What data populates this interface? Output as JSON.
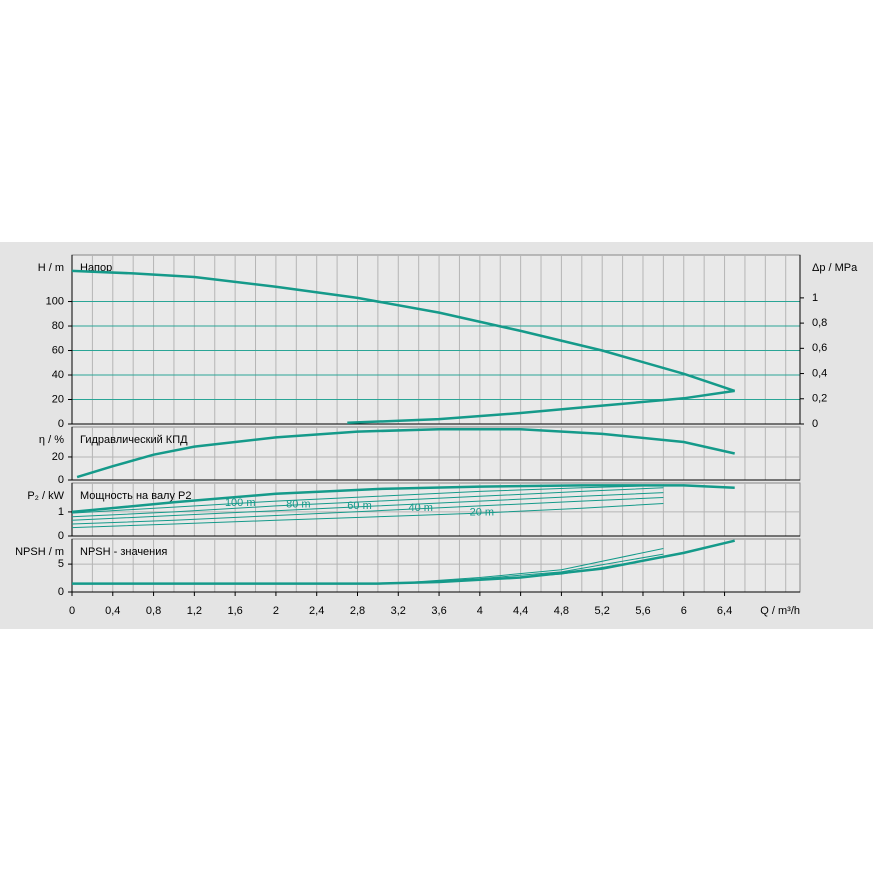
{
  "chart_data": [
    {
      "type": "line",
      "title": "Напор",
      "ylabel": "H / m",
      "y2label": "Δp / MPa",
      "xlim": [
        0,
        7.14
      ],
      "ylim": [
        0,
        138
      ],
      "yticks": [
        0,
        20,
        40,
        60,
        80,
        100
      ],
      "y2lim": [
        0,
        1.34
      ],
      "y2ticks": [
        0,
        {
          "value": 0.2,
          "label": "0,2"
        },
        {
          "value": 0.4,
          "label": "0,4"
        },
        {
          "value": 0.6,
          "label": "0,6"
        },
        {
          "value": 0.8,
          "label": "0,8"
        },
        1
      ],
      "grid_color": "#2aa596",
      "series": [
        {
          "color": "#159a8a",
          "width": 2.5,
          "x": [
            0,
            0.6,
            1.2,
            2,
            2.8,
            3.6,
            4.4,
            5.2,
            6,
            6.5
          ],
          "values": [
            125,
            123,
            120,
            112,
            103,
            91,
            76,
            60,
            41,
            27
          ]
        },
        {
          "color": "#159a8a",
          "width": 2.5,
          "x": [
            2.7,
            3.6,
            4.4,
            5.2,
            6,
            6.5
          ],
          "values": [
            1,
            4,
            9,
            15,
            21,
            27
          ]
        }
      ]
    },
    {
      "type": "line",
      "title": "Гидравлический КПД",
      "ylabel": "η / %",
      "xlim": [
        0,
        7.14
      ],
      "ylim": [
        0,
        46
      ],
      "yticks": [
        0,
        20
      ],
      "grid_color": "#b5b5b5",
      "series": [
        {
          "color": "#159a8a",
          "width": 2.5,
          "x": [
            0.05,
            0.4,
            0.8,
            1.2,
            2,
            2.8,
            3.6,
            4.4,
            5.2,
            6,
            6.5
          ],
          "values": [
            2.5,
            12,
            22,
            29,
            37,
            42,
            44,
            44,
            40,
            33,
            23
          ]
        }
      ]
    },
    {
      "type": "line",
      "title": "Мощность на валу P2",
      "ylabel": "P₂ / kW",
      "xlim": [
        0,
        7.14
      ],
      "ylim": [
        0,
        2.2
      ],
      "yticks": [
        0,
        1
      ],
      "grid_color": "#b5b5b5",
      "series": [
        {
          "color": "#159a8a",
          "width": 2.5,
          "x": [
            0,
            1,
            2,
            3,
            4,
            5,
            6,
            6.5
          ],
          "values": [
            1.0,
            1.4,
            1.75,
            1.95,
            2.05,
            2.1,
            2.1,
            2.0
          ]
        },
        {
          "name": "100 m",
          "color": "#159a8a",
          "width": 1,
          "x": [
            0,
            1,
            2,
            3,
            4,
            5,
            5.8
          ],
          "values": [
            0.95,
            1.2,
            1.45,
            1.65,
            1.85,
            2.0,
            2.1
          ]
        },
        {
          "name": "80 m",
          "color": "#159a8a",
          "width": 1,
          "x": [
            0,
            1,
            2,
            3,
            4,
            5,
            5.8
          ],
          "values": [
            0.8,
            1.0,
            1.25,
            1.45,
            1.65,
            1.85,
            2.0
          ]
        },
        {
          "name": "60 m",
          "color": "#159a8a",
          "width": 1,
          "x": [
            0,
            1,
            2,
            3,
            4,
            5,
            5.8
          ],
          "values": [
            0.65,
            0.85,
            1.05,
            1.25,
            1.45,
            1.65,
            1.8
          ]
        },
        {
          "name": "40 m",
          "color": "#159a8a",
          "width": 1,
          "x": [
            0,
            1,
            2,
            3,
            4,
            5,
            5.8
          ],
          "values": [
            0.5,
            0.65,
            0.85,
            1.05,
            1.25,
            1.45,
            1.6
          ]
        },
        {
          "name": "20 m",
          "color": "#159a8a",
          "width": 1,
          "x": [
            0,
            1,
            2,
            3,
            4,
            5,
            5.8
          ],
          "values": [
            0.35,
            0.5,
            0.65,
            0.8,
            0.95,
            1.15,
            1.35
          ]
        }
      ]
    },
    {
      "type": "line",
      "title": "NPSH - значения",
      "ylabel": "NPSH / m",
      "xlabel": "Q / m³/h",
      "xlim": [
        0,
        7.14
      ],
      "ylim": [
        0,
        9.5
      ],
      "yticks": [
        0,
        5
      ],
      "grid_color": "#b5b5b5",
      "xticks": [
        0,
        {
          "value": 0.4,
          "label": "0,4"
        },
        {
          "value": 0.8,
          "label": "0,8"
        },
        {
          "value": 1.2,
          "label": "1,2"
        },
        {
          "value": 1.6,
          "label": "1,6"
        },
        2,
        {
          "value": 2.4,
          "label": "2,4"
        },
        {
          "value": 2.8,
          "label": "2,8"
        },
        {
          "value": 3.2,
          "label": "3,2"
        },
        {
          "value": 3.6,
          "label": "3,6"
        },
        4,
        {
          "value": 4.4,
          "label": "4,4"
        },
        {
          "value": 4.8,
          "label": "4,8"
        },
        {
          "value": 5.2,
          "label": "5,2"
        },
        {
          "value": 5.6,
          "label": "5,6"
        },
        6,
        {
          "value": 6.4,
          "label": "6,4"
        }
      ],
      "xminorticks": [
        0.2,
        0.6,
        1.0,
        1.4,
        1.8,
        2.2,
        2.6,
        3.0,
        3.4,
        3.8,
        4.2,
        4.6,
        5.0,
        5.4,
        5.8,
        6.2,
        6.6,
        6.8,
        7.0
      ],
      "series": [
        {
          "color": "#159a8a",
          "width": 2.5,
          "x": [
            0,
            1,
            2,
            3,
            3.6,
            4.4,
            5.2,
            6,
            6.5
          ],
          "values": [
            1.5,
            1.5,
            1.5,
            1.5,
            1.8,
            2.6,
            4.2,
            7.0,
            9.2
          ]
        },
        {
          "color": "#159a8a",
          "width": 1,
          "x": [
            3.2,
            4,
            4.8,
            5.8
          ],
          "values": [
            1.6,
            2.6,
            4.0,
            7.8
          ]
        },
        {
          "color": "#159a8a",
          "width": 1,
          "x": [
            3.2,
            4,
            4.8,
            5.8
          ],
          "values": [
            1.6,
            2.4,
            3.6,
            6.8
          ]
        },
        {
          "color": "#159a8a",
          "width": 1,
          "x": [
            3.2,
            4,
            4.8,
            5.8
          ],
          "values": [
            1.6,
            2.2,
            3.2,
            6.2
          ]
        }
      ]
    }
  ]
}
